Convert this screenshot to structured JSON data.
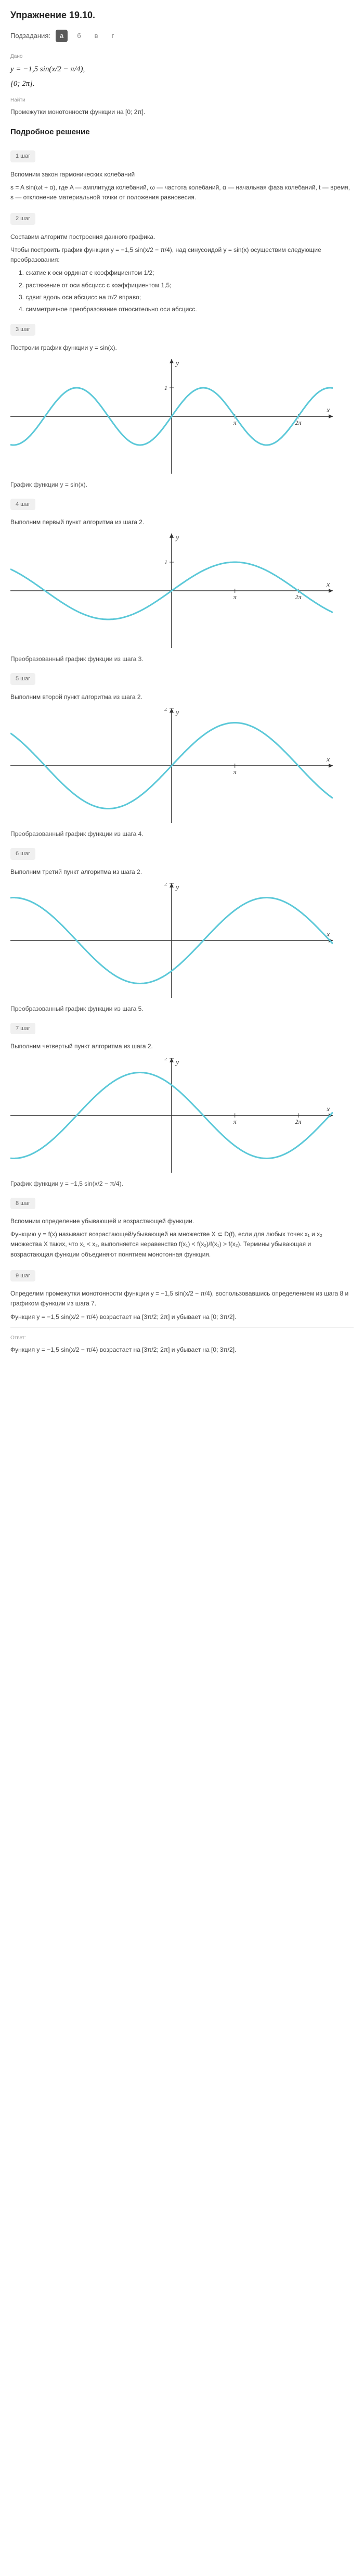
{
  "exercise": {
    "title": "Упражнение 19.10.",
    "subtasks_label": "Подзадания:",
    "subtasks": [
      "а",
      "б",
      "в",
      "г"
    ],
    "active_subtask": 0
  },
  "given": {
    "label": "Дано",
    "formula1": "y = −1,5 sin(x/2 − π/4),",
    "formula2": "[0; 2π]."
  },
  "find": {
    "label": "Найти",
    "text": "Промежутки монотонности функции на [0; 2π]."
  },
  "solution": {
    "title": "Подробное решение",
    "steps": [
      {
        "badge": "1 шаг",
        "lines": [
          "Вспомним закон гармонических колебаний",
          "s = A sin(ωt + α), где A — амплитуда колебаний, ω — частота колебаний, α — начальная фаза колебаний, t — время, s — отклонение материальной точки от положения равновесия."
        ]
      },
      {
        "badge": "2 шаг",
        "lines": [
          "Составим алгоритм построения данного графика.",
          "Чтобы построить график функции y = −1,5 sin(x/2 − π/4), над синусоидой y = sin(x) осуществим следующие преобразования:"
        ],
        "numbered": [
          "сжатие к оси ординат с коэффициентом 1/2;",
          "растяжение от оси абсцисс с коэффициентом 1,5;",
          "сдвиг вдоль оси абсцисс на π/2 вправо;",
          "симметричное преобразование относительно оси абсцисс."
        ]
      },
      {
        "badge": "3 шаг",
        "lines": [
          "Построим график функции y = sin(x)."
        ],
        "graph": {
          "type": "sine",
          "amplitude": 1,
          "frequency": 1,
          "phase": 0,
          "reflect": false,
          "color": "#5bc8d8",
          "y_range": [
            -2,
            2
          ],
          "x_range": [
            -8,
            8
          ],
          "y_ticks": [
            1
          ],
          "x_marks": [
            "π",
            "2π"
          ]
        },
        "caption": "График функции y = sin(x)."
      },
      {
        "badge": "4 шаг",
        "lines": [
          "Выполним первый пункт алгоритма из шага 2."
        ],
        "graph": {
          "type": "sine",
          "amplitude": 1,
          "frequency": 0.5,
          "phase": 0,
          "reflect": false,
          "color": "#5bc8d8",
          "y_range": [
            -2,
            2
          ],
          "x_range": [
            -8,
            8
          ],
          "y_ticks": [
            1
          ],
          "x_marks": [
            "π",
            "2π"
          ]
        },
        "caption": "Преобразованный график функции из шага 3."
      },
      {
        "badge": "5 шаг",
        "lines": [
          "Выполним второй пункт алгоритма из шага 2."
        ],
        "graph": {
          "type": "sine",
          "amplitude": 1.5,
          "frequency": 0.5,
          "phase": 0,
          "reflect": false,
          "color": "#5bc8d8",
          "y_range": [
            -2,
            2
          ],
          "x_range": [
            -8,
            8
          ],
          "y_ticks": [
            2
          ],
          "x_marks": [
            "π"
          ]
        },
        "caption": "Преобразованный график функции из шага 4."
      },
      {
        "badge": "6 шаг",
        "lines": [
          "Выполним третий пункт алгоритма из шага 2."
        ],
        "graph": {
          "type": "sine",
          "amplitude": 1.5,
          "frequency": 0.5,
          "phase": 1.5708,
          "reflect": false,
          "color": "#5bc8d8",
          "y_range": [
            -2,
            2
          ],
          "x_range": [
            -8,
            8
          ],
          "y_ticks": [
            2
          ],
          "x_marks": []
        },
        "caption": "Преобразованный график функции из шага 5."
      },
      {
        "badge": "7 шаг",
        "lines": [
          "Выполним четвертый пункт алгоритма из шага 2."
        ],
        "graph": {
          "type": "sine",
          "amplitude": 1.5,
          "frequency": 0.5,
          "phase": 1.5708,
          "reflect": true,
          "color": "#5bc8d8",
          "y_range": [
            -2,
            2
          ],
          "x_range": [
            -8,
            8
          ],
          "y_ticks": [
            2
          ],
          "x_marks": [
            "π",
            "2π"
          ]
        },
        "caption": "График функции y = −1,5 sin(x/2 − π/4)."
      },
      {
        "badge": "8 шаг",
        "lines": [
          "Вспомним определение убывающей и возрастающей функции.",
          "Функцию y = f(x) называют возрастающей/убывающей на множестве X ⊂ D(f), если для любых точек x₁ и x₂ множества X таких, что x₁ < x₂, выполняется неравенство f(x₁) < f(x₂)/f(x₁) > f(x₂). Термины убывающая и возрастающая функции объединяют понятием монотонная функция."
        ]
      },
      {
        "badge": "9 шаг",
        "lines": [
          "Определим промежутки монотонности функции y = −1,5 sin(x/2 − π/4), воспользовавшись определением из шага 8 и графиком функции из шага 7.",
          "Функция y = −1,5 sin(x/2 − π/4) возрастает на [3π/2; 2π] и убывает на [0; 3π/2]."
        ]
      }
    ]
  },
  "answer": {
    "label": "Ответ:",
    "text": "Функция y = −1,5 sin(x/2 − π/4) возрастает на [3π/2; 2π] и убывает на [0; 3π/2]."
  },
  "colors": {
    "curve": "#5bc8d8",
    "axis": "#333333",
    "grid": "#ffffff",
    "text": "#333333"
  }
}
